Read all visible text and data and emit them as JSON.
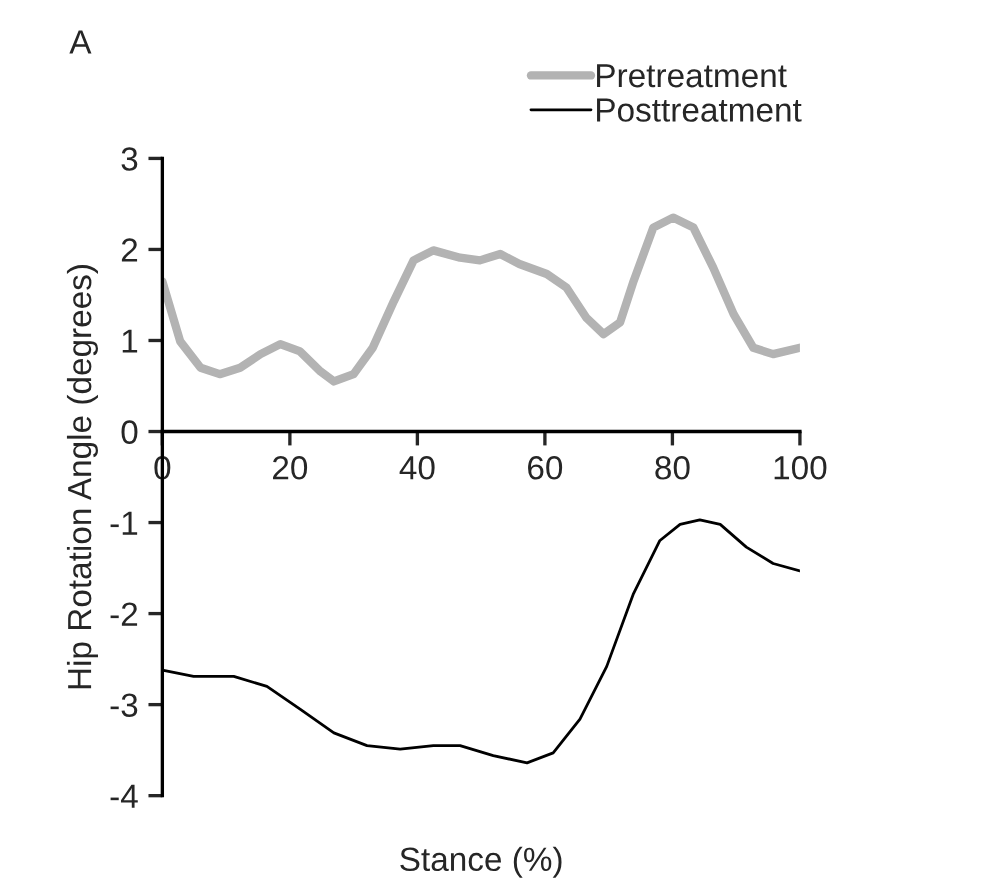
{
  "chart_data": {
    "type": "line",
    "title": "A",
    "xlabel": "Stance (%)",
    "ylabel": "Hip Rotation Angle (degrees)",
    "xlim": [
      0,
      100
    ],
    "ylim": [
      -4,
      3
    ],
    "xticks": [
      0,
      20,
      40,
      60,
      80,
      100
    ],
    "yticks": [
      -4,
      -3,
      -2,
      -1,
      0,
      1,
      2,
      3
    ],
    "grid": false,
    "legend": "top right",
    "marker": "none",
    "line_style": "solid",
    "series": [
      {
        "name": "Pretreatment",
        "color": "#b3b3b3",
        "x": [
          0,
          2.8,
          6,
          9,
          12.2,
          15.4,
          18.5,
          21.6,
          24.8,
          26.9,
          30,
          33,
          36.3,
          39.4,
          42.5,
          46.7,
          49.8,
          53,
          56,
          60.3,
          63.4,
          66.5,
          69.2,
          71.8,
          73.9,
          77,
          80.1,
          83.3,
          86.4,
          89.6,
          92.7,
          95.8,
          100
        ],
        "values": [
          1.65,
          0.99,
          0.7,
          0.63,
          0.7,
          0.85,
          0.96,
          0.88,
          0.66,
          0.55,
          0.63,
          0.92,
          1.43,
          1.88,
          1.99,
          1.91,
          1.88,
          1.95,
          1.84,
          1.73,
          1.58,
          1.25,
          1.07,
          1.2,
          1.65,
          2.24,
          2.35,
          2.24,
          1.8,
          1.29,
          0.92,
          0.85,
          0.92
        ]
      },
      {
        "name": "Posttreatment",
        "color": "#000000",
        "x": [
          0,
          4.9,
          11.2,
          16.4,
          21.6,
          26.9,
          32.1,
          37.3,
          42.5,
          46.7,
          51.9,
          57.2,
          61.3,
          65.5,
          69.7,
          73.9,
          78,
          81.2,
          84.3,
          87.5,
          91.6,
          95.8,
          100
        ],
        "values": [
          -2.62,
          -2.69,
          -2.69,
          -2.8,
          -3.05,
          -3.31,
          -3.45,
          -3.49,
          -3.45,
          -3.45,
          -3.56,
          -3.64,
          -3.53,
          -3.16,
          -2.58,
          -1.78,
          -1.2,
          -1.02,
          -0.97,
          -1.02,
          -1.27,
          -1.45,
          -1.53
        ]
      }
    ]
  }
}
